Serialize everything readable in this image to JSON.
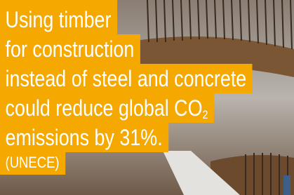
{
  "lines": [
    "Using timber",
    "for construction",
    "instead of steel and concrete",
    "could reduce global CO",
    "emissions by 31%."
  ],
  "subscript": "2",
  "source": "(UNECE)"
}
